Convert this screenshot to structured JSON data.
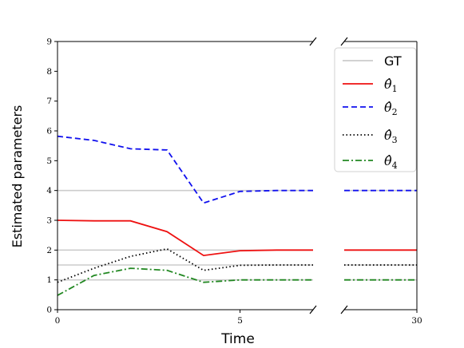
{
  "chart_data": {
    "type": "line",
    "title": "",
    "xlabel": "Time",
    "ylabel": "Estimated parameters",
    "grid": false,
    "legend_position": "top-right",
    "axes": {
      "left_panel": {
        "xlim": [
          0,
          7
        ],
        "ylim": [
          0,
          9
        ],
        "xticks": [
          0,
          5
        ],
        "yticks": [
          0,
          1,
          2,
          3,
          4,
          5,
          6,
          7,
          8,
          9
        ]
      },
      "right_panel": {
        "xlim": [
          27.7,
          30
        ],
        "ylim": [
          0,
          9
        ],
        "xticks": [
          30
        ]
      }
    },
    "tick_labels": {
      "y": [
        "0",
        "1",
        "2",
        "3",
        "4",
        "5",
        "6",
        "7",
        "8",
        "9"
      ],
      "x_left": [
        "0",
        "5"
      ],
      "x_right": [
        "30"
      ]
    },
    "ground_truth": {
      "name": "GT",
      "color": "#cccccc",
      "values": [
        4,
        2,
        1.5,
        1
      ]
    },
    "x": [
      0,
      1,
      2,
      3,
      4,
      5,
      6,
      7
    ],
    "series": [
      {
        "name": "θ̂1",
        "legend_base": "θ̂",
        "legend_sub": "1",
        "color": "#ee1111",
        "dash": "",
        "left_values": [
          3.0,
          2.98,
          2.98,
          2.62,
          1.82,
          1.98,
          2.0,
          2.0
        ],
        "right_x": [
          27.7,
          30
        ],
        "right_values": [
          2.0,
          2.0
        ]
      },
      {
        "name": "θ̂2",
        "legend_base": "θ̂",
        "legend_sub": "2",
        "color": "#1111ee",
        "dash": "7,4",
        "left_values": [
          5.82,
          5.68,
          5.4,
          5.36,
          3.58,
          3.97,
          4.0,
          4.0
        ],
        "right_x": [
          27.7,
          30
        ],
        "right_values": [
          4.0,
          4.0
        ]
      },
      {
        "name": "θ̂3",
        "legend_base": "θ̂",
        "legend_sub": "3",
        "color": "#000000",
        "dash": "1.5,3",
        "left_values": [
          0.92,
          1.39,
          1.79,
          2.04,
          1.32,
          1.49,
          1.5,
          1.5
        ],
        "right_x": [
          27.7,
          30
        ],
        "right_values": [
          1.5,
          1.5
        ]
      },
      {
        "name": "θ̂4",
        "legend_base": "θ̂",
        "legend_sub": "4",
        "color": "#228822",
        "dash": "8,3,2,3",
        "left_values": [
          0.48,
          1.15,
          1.39,
          1.32,
          0.92,
          1.0,
          1.0,
          1.0
        ],
        "right_x": [
          27.7,
          30
        ],
        "right_values": [
          1.0,
          1.0
        ]
      }
    ]
  }
}
